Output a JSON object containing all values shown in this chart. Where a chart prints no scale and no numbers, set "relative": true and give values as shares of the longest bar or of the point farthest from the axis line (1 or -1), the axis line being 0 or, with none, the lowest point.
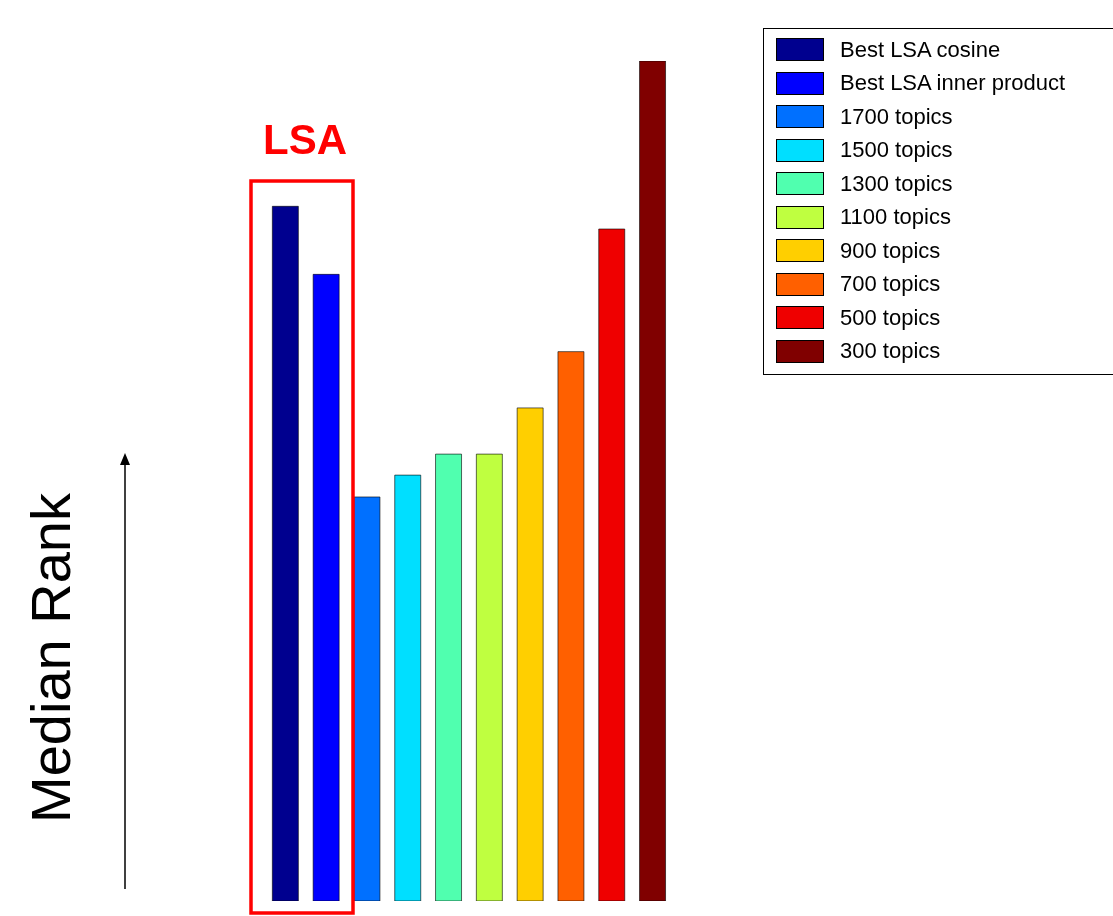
{
  "chart_data": {
    "type": "bar",
    "relative": true,
    "stacked": true,
    "ylabel": "Median Rank",
    "annotations": [
      "LSA"
    ],
    "legend": "top right",
    "categories": [
      null,
      null,
      null,
      null,
      null,
      null,
      null,
      null,
      null,
      null
    ],
    "series": [
      {
        "name": "Best LSA cosine",
        "color": "#00008f",
        "values": [
          0.827,
          null,
          null,
          null,
          null,
          null,
          null,
          null,
          null,
          null
        ]
      },
      {
        "name": "Best LSA inner product",
        "color": "#0000ff",
        "values": [
          null,
          0.746,
          null,
          null,
          null,
          null,
          null,
          null,
          null,
          null
        ]
      },
      {
        "name": "1700 topics",
        "color": "#0070ff",
        "values": [
          null,
          null,
          0.481,
          null,
          null,
          null,
          null,
          null,
          null,
          null
        ]
      },
      {
        "name": "1500 topics",
        "color": "#00dfff",
        "values": [
          null,
          null,
          null,
          0.507,
          null,
          null,
          null,
          null,
          null,
          null
        ]
      },
      {
        "name": "1300 topics",
        "color": "#50ffaf",
        "values": [
          null,
          null,
          null,
          null,
          0.532,
          null,
          null,
          null,
          null,
          null
        ]
      },
      {
        "name": "1100 topics",
        "color": "#bfff40",
        "values": [
          null,
          null,
          null,
          null,
          null,
          0.532,
          null,
          null,
          null,
          null
        ]
      },
      {
        "name": "900 topics",
        "color": "#ffcf00",
        "values": [
          null,
          null,
          null,
          null,
          null,
          null,
          0.587,
          null,
          null,
          null
        ]
      },
      {
        "name": "700 topics",
        "color": "#ff6000",
        "values": [
          null,
          null,
          null,
          null,
          null,
          null,
          null,
          0.654,
          null,
          null
        ]
      },
      {
        "name": "500 topics",
        "color": "#ef0000",
        "values": [
          null,
          null,
          null,
          null,
          null,
          null,
          null,
          null,
          0.8,
          null
        ]
      },
      {
        "name": "300 topics",
        "color": "#800000",
        "values": [
          null,
          null,
          null,
          null,
          null,
          null,
          null,
          null,
          null,
          1
        ]
      }
    ]
  }
}
